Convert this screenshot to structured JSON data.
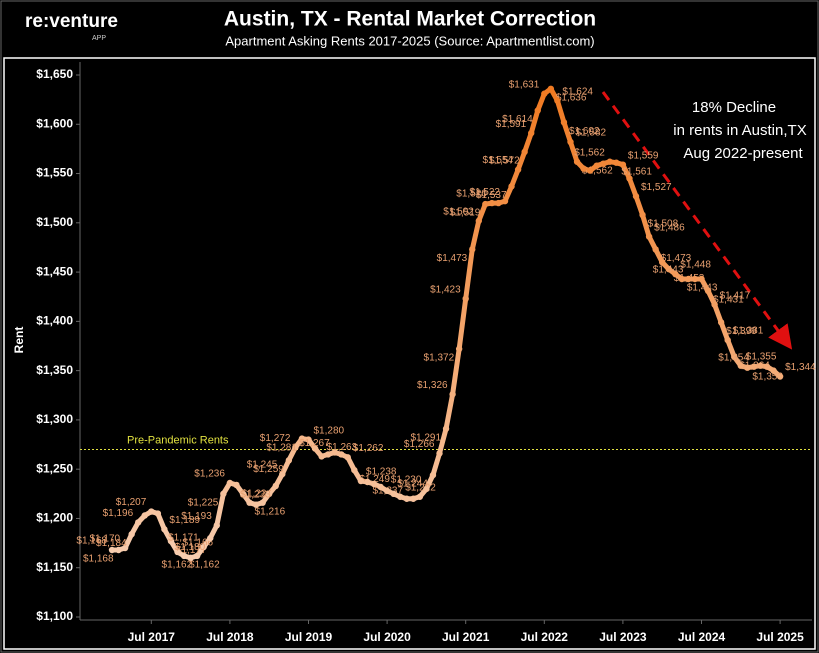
{
  "logo": {
    "name": "re:venture",
    "sub": "APP"
  },
  "chart_data": {
    "type": "line",
    "title": "Austin, TX - Rental Market Correction",
    "subtitle": "Apartment Asking Rents 2017-2025 (Source: Apartmentlist.com)",
    "ylabel": "Rent",
    "annotations": [
      "18% Decline",
      "in rents in Austin,TX",
      "Aug 2022-present"
    ],
    "reference_line": {
      "value": 1270,
      "label": "Pre-Pandemic Rents",
      "color": "#e0e040"
    },
    "color_low": "#f7cdb0",
    "color_high": "#f07a22",
    "x": [
      "2017-01",
      "2017-02",
      "2017-03",
      "2017-04",
      "2017-05",
      "2017-06",
      "2017-07",
      "2017-08",
      "2017-09",
      "2017-10",
      "2017-11",
      "2017-12",
      "2018-01",
      "2018-02",
      "2018-03",
      "2018-04",
      "2018-05",
      "2018-06",
      "2018-07",
      "2018-08",
      "2018-09",
      "2018-10",
      "2018-11",
      "2018-12",
      "2019-01",
      "2019-02",
      "2019-03",
      "2019-04",
      "2019-05",
      "2019-06",
      "2019-07",
      "2019-08",
      "2019-09",
      "2019-10",
      "2019-11",
      "2019-12",
      "2020-01",
      "2020-02",
      "2020-03",
      "2020-04",
      "2020-05",
      "2020-06",
      "2020-07",
      "2020-08",
      "2020-09",
      "2020-10",
      "2020-11",
      "2020-12",
      "2021-01",
      "2021-02",
      "2021-03",
      "2021-04",
      "2021-05",
      "2021-06",
      "2021-07",
      "2021-08",
      "2021-09",
      "2021-10",
      "2021-11",
      "2021-12",
      "2022-01",
      "2022-02",
      "2022-03",
      "2022-04",
      "2022-05",
      "2022-06",
      "2022-07",
      "2022-08",
      "2022-09",
      "2022-10",
      "2022-11",
      "2022-12",
      "2023-01",
      "2023-02",
      "2023-03",
      "2023-04",
      "2023-05",
      "2023-06",
      "2023-07",
      "2023-08",
      "2023-09",
      "2023-10",
      "2023-11",
      "2023-12",
      "2024-01",
      "2024-02",
      "2024-03",
      "2024-04",
      "2024-05",
      "2024-06",
      "2024-07",
      "2024-08",
      "2024-09",
      "2024-10",
      "2024-11",
      "2024-12",
      "2025-01",
      "2025-02",
      "2025-03",
      "2025-04",
      "2025-05",
      "2025-06",
      "2025-07"
    ],
    "values": [
      1168,
      1168,
      1170,
      1184,
      1196,
      1203,
      1207,
      1205,
      1189,
      1177,
      1166,
      1162,
      1160,
      1162,
      1171,
      1180,
      1193,
      1225,
      1236,
      1234,
      1225,
      1216,
      1214,
      1216,
      1225,
      1233,
      1245,
      1259,
      1272,
      1281,
      1280,
      1271,
      1263,
      1265,
      1267,
      1265,
      1262,
      1249,
      1238,
      1237,
      1235,
      1232,
      1228,
      1225,
      1222,
      1220,
      1220,
      1222,
      1230,
      1244,
      1266,
      1291,
      1326,
      1372,
      1423,
      1473,
      1502,
      1519,
      1520,
      1520,
      1522,
      1537,
      1554,
      1572,
      1591,
      1614,
      1631,
      1636,
      1624,
      1602,
      1582,
      1562,
      1555,
      1553,
      1558,
      1560,
      1562,
      1561,
      1559,
      1545,
      1527,
      1508,
      1486,
      1473,
      1460,
      1453,
      1448,
      1443,
      1443,
      1443,
      1443,
      1431,
      1417,
      1399,
      1381,
      1364,
      1355,
      1353,
      1354,
      1355,
      1354,
      1350,
      1344
    ],
    "value_labels": [
      "$1,168",
      "$1,168",
      "$1,170",
      "$1,184",
      "$1,196",
      null,
      "$1,207",
      null,
      "$1,189",
      "$1,177",
      "$1,166",
      "$1,162",
      null,
      "$1,162",
      "$1,171",
      "$1,180",
      "$1,193",
      "$1,225",
      "$1,236",
      "$1,234",
      null,
      "$1,216",
      null,
      null,
      null,
      "$1,233",
      "$1,245",
      "$1,259",
      "$1,272",
      "$1,281",
      "$1,280",
      null,
      "$1,263",
      null,
      "$1,267",
      null,
      "$1,262",
      "$1,249",
      "$1,238",
      "$1,237",
      null,
      null,
      null,
      null,
      "$1,222",
      null,
      null,
      null,
      "$1,230",
      "$1,244",
      "$1,266",
      "$1,291",
      "$1,326",
      "$1,372",
      "$1,423",
      "$1,473",
      "$1,502",
      "$1,519",
      "$1,520",
      null,
      "$1,522",
      "$1,537",
      "$1,554",
      "$1,572",
      "$1,591",
      "$1,614",
      "$1,631",
      "$1,636",
      "$1,624",
      "$1,602",
      "$1,582",
      "$1,562",
      null,
      null,
      null,
      null,
      "$1,562",
      "$1,561",
      "$1,559",
      null,
      "$1,527",
      "$1,508",
      "$1,486",
      "$1,473",
      null,
      "$1,453",
      "$1,448",
      "$1,443",
      "$1,443",
      null,
      null,
      "$1,431",
      "$1,417",
      "$1,399",
      "$1,381",
      "$1,364",
      "$1,355",
      "$1,353",
      "$1,354",
      null,
      null,
      null,
      "$1,344"
    ],
    "ylim": [
      1100,
      1650
    ],
    "yticks": [
      {
        "value": 1100,
        "label": "$1,100"
      },
      {
        "value": 1150,
        "label": "$1,150"
      },
      {
        "value": 1200,
        "label": "$1,200"
      },
      {
        "value": 1250,
        "label": "$1,250"
      },
      {
        "value": 1300,
        "label": "$1,300"
      },
      {
        "value": 1350,
        "label": "$1,350"
      },
      {
        "value": 1400,
        "label": "$1,400"
      },
      {
        "value": 1450,
        "label": "$1,450"
      },
      {
        "value": 1500,
        "label": "$1,500"
      },
      {
        "value": 1550,
        "label": "$1,550"
      },
      {
        "value": 1600,
        "label": "$1,600"
      },
      {
        "value": 1650,
        "label": "$1,650"
      }
    ],
    "xticks": [
      {
        "value": "2017-07",
        "label": "Jul 2017"
      },
      {
        "value": "2018-07",
        "label": "Jul 2018"
      },
      {
        "value": "2019-07",
        "label": "Jul 2019"
      },
      {
        "value": "2020-07",
        "label": "Jul 2020"
      },
      {
        "value": "2021-07",
        "label": "Jul 2021"
      },
      {
        "value": "2022-07",
        "label": "Jul 2022"
      },
      {
        "value": "2023-07",
        "label": "Jul 2023"
      },
      {
        "value": "2024-07",
        "label": "Jul 2024"
      },
      {
        "value": "2025-07",
        "label": "Jul 2025"
      }
    ]
  }
}
